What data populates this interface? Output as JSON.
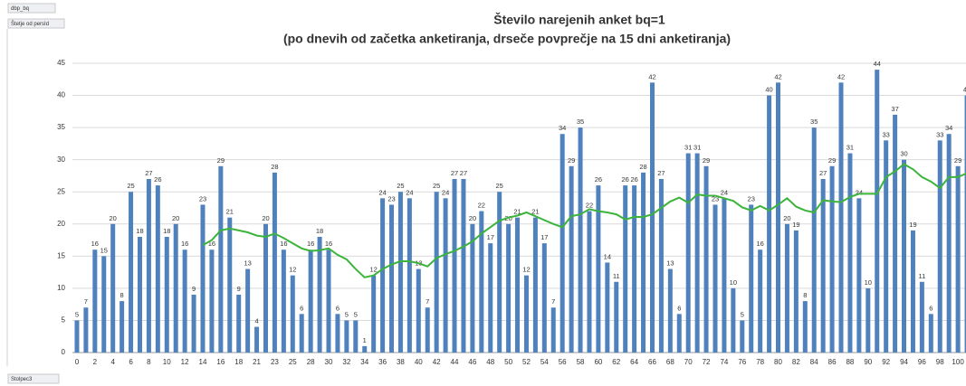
{
  "chart_data": {
    "type": "bar",
    "title": "Število narejenih anket bq=1",
    "subtitle": "(po dnevih od začetka anketiranja, drseče povprečje na 15 dni anketiranja)",
    "field_buttons": [
      "dbp_bq",
      "Štetje od persId",
      "Stolpec3"
    ],
    "categories": [
      "0",
      null,
      "2",
      null,
      "4",
      null,
      "6",
      null,
      "8",
      null,
      "10",
      null,
      "12",
      null,
      "14",
      null,
      "16",
      null,
      "18",
      null,
      "21",
      null,
      "23",
      null,
      "25",
      null,
      "28",
      null,
      "30",
      null,
      "32",
      null,
      "34",
      null,
      "36",
      null,
      "38",
      null,
      "40",
      null,
      "42",
      null,
      "44",
      null,
      "46",
      null,
      "48",
      null,
      "50",
      null,
      "52",
      null,
      "54",
      null,
      "56",
      null,
      "58",
      null,
      "60",
      null,
      "62",
      null,
      "64",
      null,
      "66",
      null,
      "68",
      null,
      "70",
      null,
      "72",
      null,
      "74",
      null,
      "76",
      null,
      "78",
      null,
      "80",
      null,
      "82",
      null,
      "84",
      null,
      "86",
      null,
      "88",
      null,
      "90",
      null,
      "92",
      null,
      "94",
      null,
      "96",
      null,
      "98",
      null,
      "100",
      null
    ],
    "series": [
      {
        "color": "#4f81bd",
        "values": [
          5,
          7,
          16,
          15,
          20,
          8,
          25,
          18,
          27,
          26,
          18,
          20,
          16,
          9,
          23,
          16,
          29,
          21,
          9,
          13,
          4,
          20,
          28,
          16,
          12,
          6,
          16,
          18,
          16,
          6,
          5,
          5,
          1,
          12,
          24,
          23,
          25,
          24,
          13,
          7,
          25,
          24,
          27,
          27,
          20,
          22,
          17,
          25,
          20,
          21,
          12,
          21,
          17,
          7,
          34,
          29,
          35,
          22,
          26,
          14,
          11,
          26,
          26,
          28,
          42,
          27,
          13,
          6,
          31,
          31,
          29,
          23,
          24,
          10,
          5,
          23,
          16,
          40,
          42,
          20,
          19,
          8,
          35,
          27,
          29,
          42,
          31,
          24,
          10,
          44,
          33,
          37,
          30,
          19,
          11,
          6,
          33,
          34,
          29,
          40
        ]
      },
      {
        "type": "line",
        "color": "#3cb43c",
        "values": [
          null,
          null,
          null,
          null,
          null,
          null,
          null,
          null,
          null,
          null,
          null,
          null,
          null,
          null,
          16.7,
          17.5,
          19,
          19.3,
          19,
          18.7,
          18.2,
          18,
          18.5,
          17.8,
          17,
          16.2,
          15.8,
          15.9,
          16.2,
          15.2,
          14.5,
          13,
          11.7,
          12,
          13,
          13.7,
          14.2,
          14.2,
          13.9,
          13.4,
          14.7,
          15.3,
          15.8,
          16.5,
          17.3,
          18.5,
          19.5,
          20.5,
          21,
          21.3,
          21.8,
          21.2,
          20.6,
          20,
          19.5,
          21.2,
          21.5,
          22.3,
          22,
          21.8,
          21.5,
          20.7,
          21.1,
          21.1,
          21.5,
          22.5,
          23.5,
          24.1,
          23.3,
          24.6,
          24.4,
          24.4,
          24,
          23.6,
          22.6,
          22.1,
          22.8,
          22.1,
          23,
          24,
          22.7,
          22.1,
          21.8,
          23.7,
          23.5,
          23.4,
          24.2,
          24.7,
          24.7,
          24.7,
          27.3,
          28.2,
          29.3,
          28.5,
          27.3,
          26.6,
          25.6,
          27.3,
          27.3,
          27.9
        ]
      }
    ],
    "ylim": [
      0,
      45
    ],
    "yticks": [
      0,
      5,
      10,
      15,
      20,
      25,
      30,
      35,
      40,
      45
    ],
    "grid": true
  }
}
